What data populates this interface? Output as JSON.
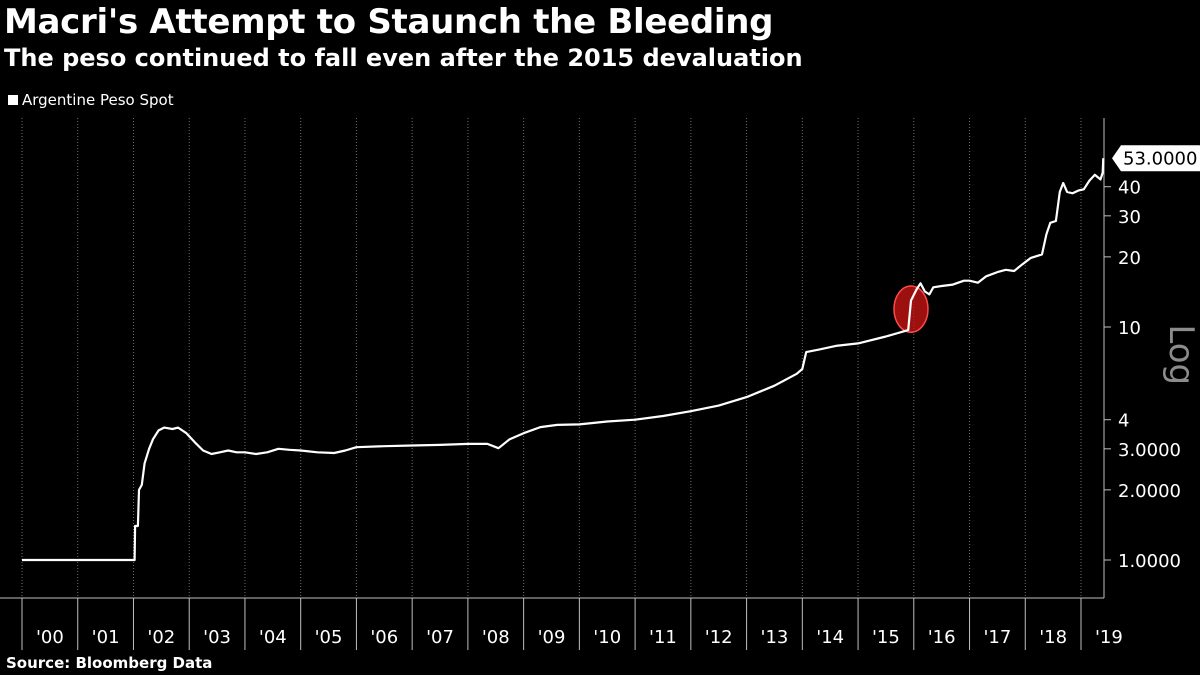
{
  "chart_data": {
    "type": "line",
    "title": "Macri's Attempt to Staunch the Bleeding",
    "subtitle": "The peso continued to fall even after the 2015 devaluation",
    "source": "Source: Bloomberg Data",
    "legend": {
      "placement": "top-left",
      "entries": [
        "Argentine Peso Spot"
      ]
    },
    "y_scale": "log",
    "y_scale_label": "Log",
    "ylim": [
      0.8,
      60
    ],
    "y_ticks": [
      {
        "value": 1,
        "label": "1.0000"
      },
      {
        "value": 2,
        "label": "2.0000"
      },
      {
        "value": 3,
        "label": "3.0000"
      },
      {
        "value": 4,
        "label": "4"
      },
      {
        "value": 10,
        "label": "10"
      },
      {
        "value": 20,
        "label": "20"
      },
      {
        "value": 30,
        "label": "30"
      },
      {
        "value": 40,
        "label": "40"
      }
    ],
    "x_tick_labels": [
      "'00",
      "'01",
      "'02",
      "'03",
      "'04",
      "'05",
      "'06",
      "'07",
      "'08",
      "'09",
      "'10",
      "'11",
      "'12",
      "'13",
      "'14",
      "'15",
      "'16",
      "'17",
      "'18",
      "'19"
    ],
    "xlim": [
      2000.0,
      2019.4
    ],
    "grid": {
      "vertical": true,
      "horizontal": false
    },
    "last_value_label": "53.0000",
    "annotation": {
      "type": "highlight-ellipse",
      "x": 2015.95,
      "y_range": [
        9.5,
        15
      ],
      "color": "#c81414"
    },
    "series": [
      {
        "name": "Argentine Peso Spot",
        "color": "#ffffff",
        "points": [
          [
            2000.0,
            1.0
          ],
          [
            2001.95,
            1.0
          ],
          [
            2002.02,
            1.0
          ],
          [
            2002.03,
            1.4
          ],
          [
            2002.08,
            1.4
          ],
          [
            2002.1,
            2.0
          ],
          [
            2002.15,
            2.1
          ],
          [
            2002.2,
            2.6
          ],
          [
            2002.28,
            3.0
          ],
          [
            2002.35,
            3.3
          ],
          [
            2002.45,
            3.6
          ],
          [
            2002.55,
            3.7
          ],
          [
            2002.7,
            3.65
          ],
          [
            2002.8,
            3.7
          ],
          [
            2002.95,
            3.5
          ],
          [
            2003.1,
            3.2
          ],
          [
            2003.25,
            2.95
          ],
          [
            2003.4,
            2.85
          ],
          [
            2003.55,
            2.9
          ],
          [
            2003.7,
            2.95
          ],
          [
            2003.85,
            2.9
          ],
          [
            2004.0,
            2.9
          ],
          [
            2004.2,
            2.85
          ],
          [
            2004.4,
            2.9
          ],
          [
            2004.6,
            3.0
          ],
          [
            2004.8,
            2.97
          ],
          [
            2005.0,
            2.95
          ],
          [
            2005.3,
            2.9
          ],
          [
            2005.6,
            2.88
          ],
          [
            2005.8,
            2.95
          ],
          [
            2006.0,
            3.05
          ],
          [
            2006.5,
            3.08
          ],
          [
            2007.0,
            3.1
          ],
          [
            2007.5,
            3.12
          ],
          [
            2008.0,
            3.15
          ],
          [
            2008.35,
            3.15
          ],
          [
            2008.55,
            3.02
          ],
          [
            2008.75,
            3.3
          ],
          [
            2009.0,
            3.5
          ],
          [
            2009.3,
            3.72
          ],
          [
            2009.6,
            3.8
          ],
          [
            2010.0,
            3.82
          ],
          [
            2010.5,
            3.93
          ],
          [
            2011.0,
            4.0
          ],
          [
            2011.5,
            4.15
          ],
          [
            2012.0,
            4.35
          ],
          [
            2012.5,
            4.6
          ],
          [
            2013.0,
            5.0
          ],
          [
            2013.5,
            5.6
          ],
          [
            2013.9,
            6.3
          ],
          [
            2014.0,
            6.6
          ],
          [
            2014.07,
            7.8
          ],
          [
            2014.3,
            8.0
          ],
          [
            2014.6,
            8.3
          ],
          [
            2015.0,
            8.5
          ],
          [
            2015.5,
            9.1
          ],
          [
            2015.9,
            9.7
          ],
          [
            2015.95,
            13.0
          ],
          [
            2016.05,
            14.5
          ],
          [
            2016.12,
            15.4
          ],
          [
            2016.2,
            14.2
          ],
          [
            2016.28,
            13.8
          ],
          [
            2016.35,
            14.8
          ],
          [
            2016.5,
            15.0
          ],
          [
            2016.7,
            15.2
          ],
          [
            2016.9,
            15.8
          ],
          [
            2017.0,
            15.8
          ],
          [
            2017.15,
            15.5
          ],
          [
            2017.3,
            16.5
          ],
          [
            2017.5,
            17.2
          ],
          [
            2017.65,
            17.6
          ],
          [
            2017.8,
            17.4
          ],
          [
            2017.95,
            18.6
          ],
          [
            2018.1,
            19.8
          ],
          [
            2018.3,
            20.5
          ],
          [
            2018.38,
            25.0
          ],
          [
            2018.45,
            28.0
          ],
          [
            2018.55,
            28.5
          ],
          [
            2018.62,
            38.0
          ],
          [
            2018.68,
            41.5
          ],
          [
            2018.75,
            38.0
          ],
          [
            2018.85,
            37.5
          ],
          [
            2018.95,
            38.5
          ],
          [
            2019.05,
            39.0
          ],
          [
            2019.15,
            42.5
          ],
          [
            2019.25,
            45.0
          ],
          [
            2019.3,
            44.0
          ],
          [
            2019.35,
            43.0
          ],
          [
            2019.39,
            46.0
          ],
          [
            2019.4,
            53.0
          ]
        ]
      }
    ]
  }
}
